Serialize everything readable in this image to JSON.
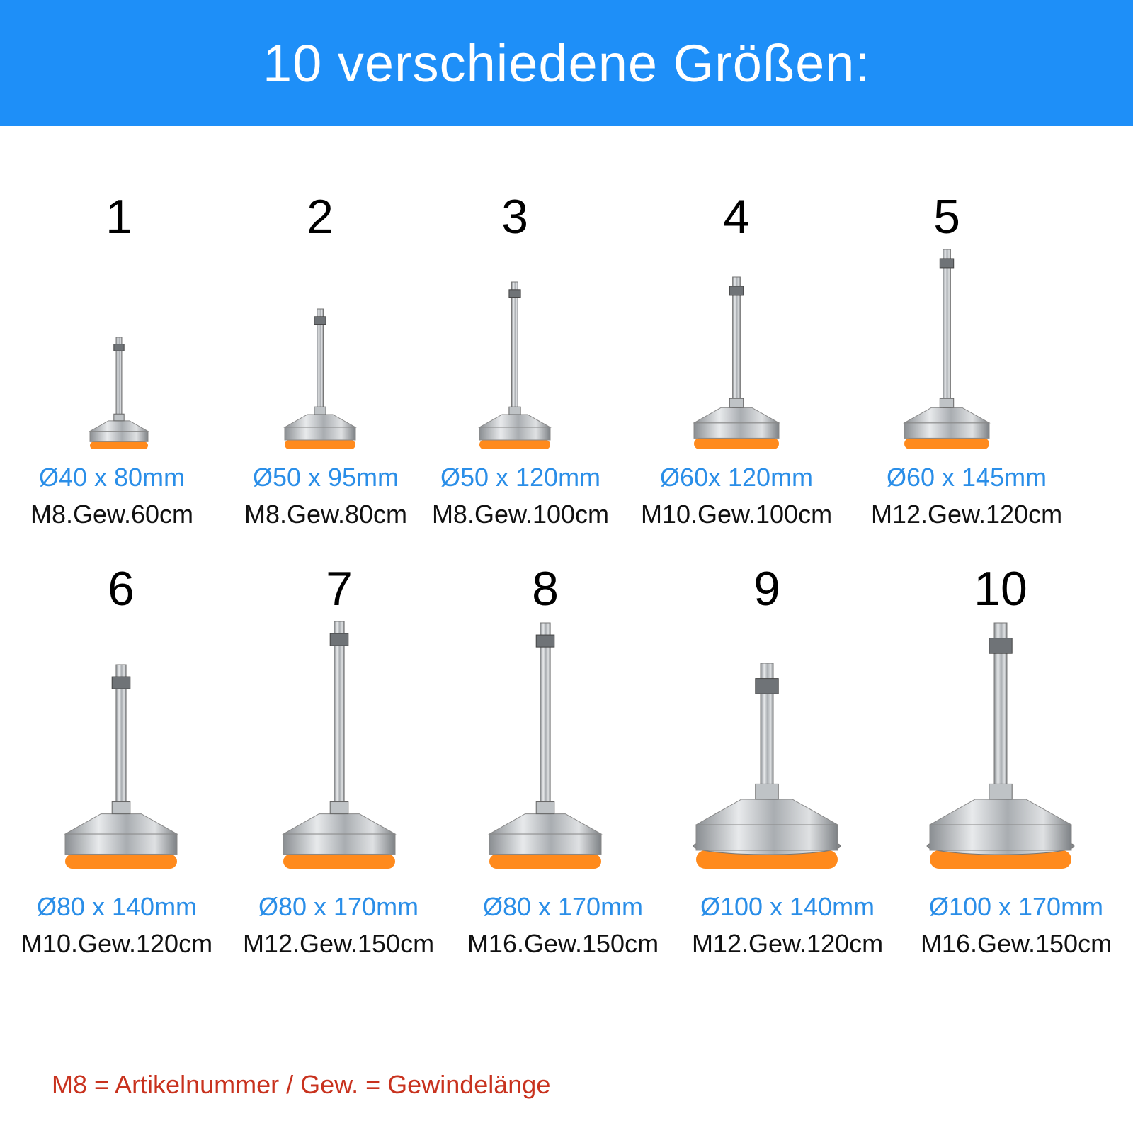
{
  "header": {
    "title": "10 verschiedene Größen:",
    "background": "#1e8ff8"
  },
  "products": [
    {
      "number": "1",
      "dimensions": "Ø40 x 80mm",
      "spec": "M8.Gew.60cm"
    },
    {
      "number": "2",
      "dimensions": "Ø50 x 95mm",
      "spec": "M8.Gew.80cm"
    },
    {
      "number": "3",
      "dimensions": "Ø50 x 120mm",
      "spec": "M8.Gew.100cm"
    },
    {
      "number": "4",
      "dimensions": "Ø60x 120mm",
      "spec": "M10.Gew.100cm"
    },
    {
      "number": "5",
      "dimensions": "Ø60 x 145mm",
      "spec": "M12.Gew.120cm"
    },
    {
      "number": "6",
      "dimensions": "Ø80 x 140mm",
      "spec": "M10.Gew.120cm"
    },
    {
      "number": "7",
      "dimensions": "Ø80 x 170mm",
      "spec": "M12.Gew.150cm"
    },
    {
      "number": "8",
      "dimensions": "Ø80 x 170mm",
      "spec": "M16.Gew.150cm"
    },
    {
      "number": "9",
      "dimensions": "Ø100 x 140mm",
      "spec": "M12.Gew.120cm"
    },
    {
      "number": "10",
      "dimensions": "Ø100 x 170mm",
      "spec": "M16.Gew.150cm"
    }
  ],
  "footnote": "M8 = Artikelnummer / Gew. = Gewindelänge",
  "colors": {
    "dimension_text": "#2a8ee8",
    "footnote_text": "#c8321e",
    "pad": "#ff8a1c",
    "metal": "#b8bcc0"
  }
}
